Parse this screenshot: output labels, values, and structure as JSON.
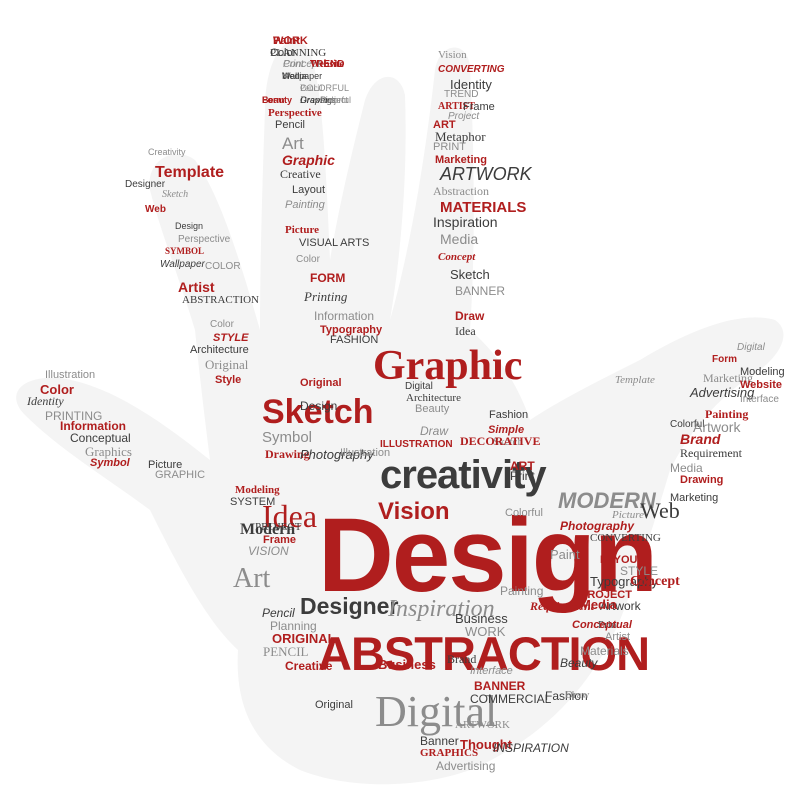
{
  "colors": {
    "red": "#b01e1e",
    "dark": "#3c3c3c",
    "gray": "#8c8c8c"
  },
  "image_description_text": {
    "hero": [
      "Design",
      "ABSTRACTION",
      "Digital",
      "creativity",
      "Graphic",
      "Sketch",
      "Vision",
      "Idea",
      "Modern",
      "MODERN",
      "Art",
      "Designer",
      "Inspiration",
      "Web"
    ],
    "words": [
      "Paint",
      "PLANNING",
      "Print",
      "TREND",
      "Wallpaper",
      "Pencil",
      "Beauty",
      "Graphics",
      "Project",
      "Perspective",
      "Pencil",
      "Art",
      "Graphic",
      "Creative",
      "Creativity",
      "Template",
      "Designer",
      "Sketch",
      "Web",
      "Design",
      "Perspective",
      "SYMBOL",
      "Wallpaper",
      "COLOR",
      "Artist",
      "ABSTRACTION",
      "Color",
      "STYLE",
      "Architecture",
      "Original",
      "Style",
      "Layout",
      "Painting",
      "Picture",
      "VISUAL ARTS",
      "Color",
      "FORM",
      "Printing",
      "Information",
      "Typography",
      "FASHION",
      "Vision",
      "CONVERTING",
      "Identity",
      "TREND",
      "ARTIST",
      "Frame",
      "Project",
      "ART",
      "Metaphor",
      "PRINT",
      "Marketing",
      "ARTWORK",
      "Abstraction",
      "MATERIALS",
      "Inspiration",
      "Media",
      "Concept",
      "Sketch",
      "BANNER",
      "Draw",
      "Idea",
      "Digital",
      "Form",
      "Modeling",
      "Marketing",
      "Website",
      "Advertising",
      "Interface",
      "Painting",
      "Colorful",
      "Artwork",
      "Brand",
      "Requirement",
      "Media",
      "Drawing",
      "Marketing",
      "Template",
      "Original",
      "Design",
      "Symbol",
      "Drawing",
      "Photography",
      "Illustration",
      "ILLUSTRATION",
      "Architecture",
      "Beauty",
      "Simple",
      "Fashion",
      "Sketch",
      "ART",
      "Print",
      "Draw",
      "DECORATIVE",
      "Digital",
      "Illustration",
      "Color",
      "Identity",
      "PRINTING",
      "Information",
      "Conceptual",
      "Graphics",
      "Symbol",
      "Picture",
      "GRAPHIC",
      "Modeling",
      "SYSTEM",
      "VISION",
      "Frame",
      "PROJECT",
      "Planning",
      "ORIGINAL",
      "Pencil",
      "PENCIL",
      "Creative",
      "Original",
      "Painting",
      "Requirement",
      "Business",
      "WORK",
      "Business",
      "Brand",
      "Interface",
      "BANNER",
      "COMMERCIAL",
      "ARTWORK",
      "Thought",
      "INSPIRATION",
      "Advertising",
      "GRAPHICS",
      "Banner",
      "Colorful",
      "Photography",
      "CONVERTING",
      "Paint",
      "LAYOUT",
      "Typography",
      "Picture",
      "PROJECT",
      "Artwork",
      "STYLE",
      "Concept",
      "Beauty",
      "Materials",
      "Media",
      "Print",
      "Artist",
      "Conceptual",
      "Fashion",
      "Draw",
      "WORK",
      "Color",
      "Concept",
      "Website",
      "Media",
      "COLORFUL",
      "Form",
      "Drawing",
      "Colorful"
    ]
  }
}
